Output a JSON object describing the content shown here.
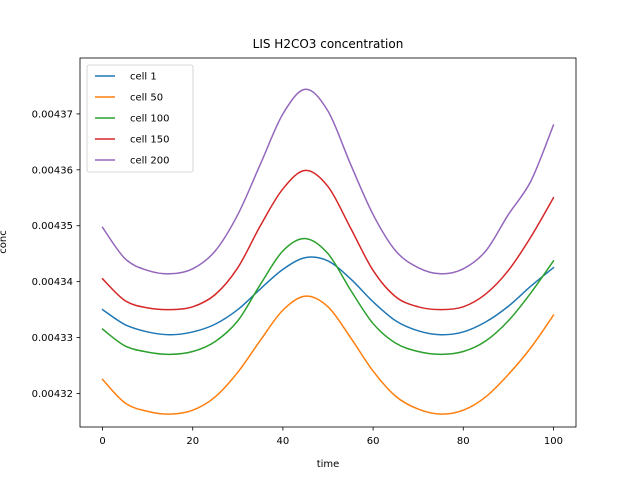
{
  "chart_data": {
    "type": "line",
    "title": "LIS H2CO3 concentration",
    "xlabel": "time",
    "ylabel": "conc",
    "xlim": [
      -5,
      105
    ],
    "ylim": [
      0.004314,
      0.00438
    ],
    "xticks": [
      0,
      20,
      40,
      60,
      80,
      100
    ],
    "yticks": [
      0.00432,
      0.00433,
      0.00434,
      0.00435,
      0.00436,
      0.00437
    ],
    "ytick_labels": [
      "0.00432",
      "0.00433",
      "0.00434",
      "0.00435",
      "0.00436",
      "0.00437"
    ],
    "legend_position": "upper-left",
    "grid": false,
    "x": [
      0,
      5,
      10,
      15,
      20,
      25,
      30,
      35,
      40,
      45,
      50,
      55,
      60,
      65,
      70,
      75,
      80,
      85,
      90,
      95,
      100
    ],
    "series": [
      {
        "name": "cell 1",
        "color": "#1f77b4",
        "values": [
          0.004335,
          0.0043323,
          0.004331,
          0.0043305,
          0.004331,
          0.0043324,
          0.004335,
          0.0043387,
          0.0043422,
          0.0043443,
          0.0043437,
          0.0043405,
          0.0043364,
          0.004333,
          0.0043312,
          0.0043305,
          0.004331,
          0.0043328,
          0.0043356,
          0.0043392,
          0.0043425
        ]
      },
      {
        "name": "cell 50",
        "color": "#ff7f0e",
        "values": [
          0.0043225,
          0.0043183,
          0.0043168,
          0.0043163,
          0.004317,
          0.0043194,
          0.0043238,
          0.0043295,
          0.0043349,
          0.0043374,
          0.0043355,
          0.00433,
          0.004324,
          0.0043195,
          0.0043172,
          0.0043163,
          0.004317,
          0.0043194,
          0.0043234,
          0.0043282,
          0.004334
        ]
      },
      {
        "name": "cell 100",
        "color": "#2ca02c",
        "values": [
          0.0043315,
          0.0043285,
          0.0043274,
          0.004327,
          0.0043275,
          0.0043293,
          0.004333,
          0.0043395,
          0.0043455,
          0.0043477,
          0.004345,
          0.0043385,
          0.0043325,
          0.004329,
          0.0043275,
          0.004327,
          0.0043275,
          0.0043294,
          0.004333,
          0.004338,
          0.0043437
        ]
      },
      {
        "name": "cell 150",
        "color": "#d62728",
        "values": [
          0.0043405,
          0.0043366,
          0.0043353,
          0.004335,
          0.0043355,
          0.0043377,
          0.0043425,
          0.00435,
          0.0043566,
          0.0043599,
          0.004357,
          0.0043496,
          0.004342,
          0.0043373,
          0.0043355,
          0.004335,
          0.0043355,
          0.0043378,
          0.004342,
          0.004348,
          0.004355
        ]
      },
      {
        "name": "cell 200",
        "color": "#9467bd",
        "values": [
          0.0043497,
          0.0043441,
          0.004342,
          0.0043414,
          0.0043423,
          0.0043455,
          0.004352,
          0.004361,
          0.00437,
          0.0043744,
          0.0043705,
          0.004361,
          0.004352,
          0.0043455,
          0.0043425,
          0.0043414,
          0.0043423,
          0.0043455,
          0.004352,
          0.004358,
          0.004368
        ]
      }
    ]
  }
}
